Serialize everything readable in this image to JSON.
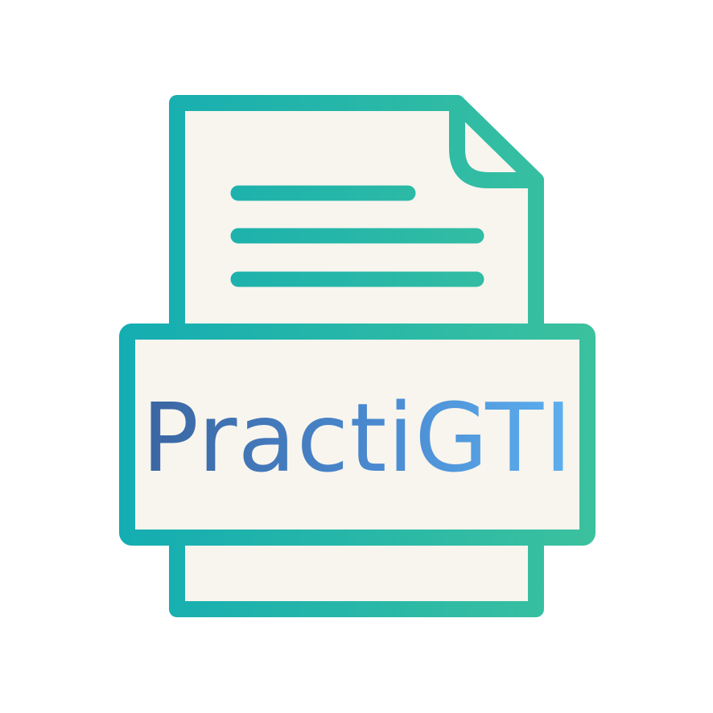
{
  "logo": {
    "name": "PractiGTI",
    "icon": "document-file-icon"
  },
  "colors": {
    "background": "#ffffff",
    "paper": "#f7f5ee",
    "teal_start": "#14adb2",
    "teal_end": "#3bc19e",
    "text_dark": "#3e6ca8",
    "text_light": "#5aa6e8"
  }
}
